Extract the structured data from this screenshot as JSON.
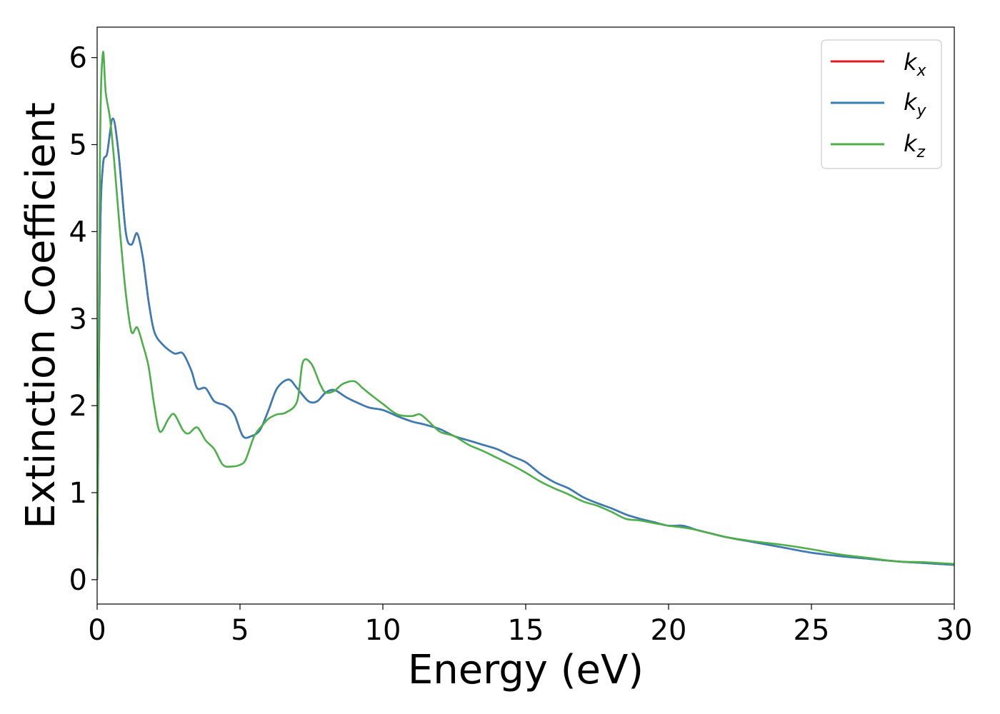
{
  "chart_data": {
    "type": "line",
    "title": "",
    "xlabel": "Energy (eV)",
    "ylabel": "Extinction Coefficient",
    "xlim": [
      0,
      30
    ],
    "ylim": [
      -0.28,
      6.35
    ],
    "xticks": [
      0,
      5,
      10,
      15,
      20,
      25,
      30
    ],
    "yticks": [
      0,
      1,
      2,
      3,
      4,
      5,
      6
    ],
    "grid": false,
    "legend_position": "top-right",
    "series": [
      {
        "name": "k_x",
        "label_main": "k",
        "label_sub": "x",
        "color": "#e41a1c",
        "x": [
          0,
          0.1,
          0.2,
          0.35,
          0.55,
          0.75,
          1.0,
          1.2,
          1.4,
          1.6,
          1.8,
          2.0,
          2.3,
          2.7,
          3.0,
          3.3,
          3.5,
          3.8,
          4.1,
          4.5,
          4.8,
          5.1,
          5.4,
          5.7,
          6.0,
          6.3,
          6.7,
          7.0,
          7.4,
          7.7,
          8.0,
          8.3,
          8.7,
          9.0,
          9.5,
          10.0,
          10.5,
          11.0,
          11.5,
          12.0,
          12.5,
          13.0,
          13.5,
          14.0,
          14.5,
          15.0,
          15.5,
          16.0,
          16.5,
          17.0,
          17.5,
          18.0,
          18.5,
          19.0,
          19.5,
          20.0,
          20.5,
          21.0,
          21.5,
          22.0,
          23.0,
          24.0,
          25.0,
          26.0,
          27.0,
          28.0,
          29.0,
          30.0
        ],
        "y": [
          0.0,
          3.8,
          4.75,
          4.9,
          5.3,
          4.9,
          4.0,
          3.85,
          3.98,
          3.7,
          3.2,
          2.85,
          2.7,
          2.6,
          2.6,
          2.4,
          2.2,
          2.2,
          2.05,
          2.0,
          1.9,
          1.65,
          1.65,
          1.72,
          1.95,
          2.2,
          2.3,
          2.2,
          2.05,
          2.05,
          2.15,
          2.18,
          2.1,
          2.05,
          1.98,
          1.95,
          1.88,
          1.82,
          1.78,
          1.73,
          1.65,
          1.6,
          1.55,
          1.5,
          1.42,
          1.35,
          1.22,
          1.12,
          1.05,
          0.95,
          0.88,
          0.82,
          0.75,
          0.7,
          0.66,
          0.62,
          0.62,
          0.57,
          0.53,
          0.49,
          0.43,
          0.37,
          0.31,
          0.27,
          0.24,
          0.21,
          0.19,
          0.17
        ]
      },
      {
        "name": "k_y",
        "label_main": "k",
        "label_sub": "y",
        "color": "#377eb8",
        "x": [
          0,
          0.1,
          0.2,
          0.35,
          0.55,
          0.75,
          1.0,
          1.2,
          1.4,
          1.6,
          1.8,
          2.0,
          2.3,
          2.7,
          3.0,
          3.3,
          3.5,
          3.8,
          4.1,
          4.5,
          4.8,
          5.1,
          5.4,
          5.7,
          6.0,
          6.3,
          6.7,
          7.0,
          7.4,
          7.7,
          8.0,
          8.3,
          8.7,
          9.0,
          9.5,
          10.0,
          10.5,
          11.0,
          11.5,
          12.0,
          12.5,
          13.0,
          13.5,
          14.0,
          14.5,
          15.0,
          15.5,
          16.0,
          16.5,
          17.0,
          17.5,
          18.0,
          18.5,
          19.0,
          19.5,
          20.0,
          20.5,
          21.0,
          21.5,
          22.0,
          23.0,
          24.0,
          25.0,
          26.0,
          27.0,
          28.0,
          29.0,
          30.0
        ],
        "y": [
          0.0,
          3.8,
          4.75,
          4.9,
          5.3,
          4.9,
          4.0,
          3.85,
          3.98,
          3.7,
          3.2,
          2.85,
          2.7,
          2.6,
          2.6,
          2.4,
          2.2,
          2.2,
          2.05,
          2.0,
          1.9,
          1.65,
          1.65,
          1.72,
          1.95,
          2.2,
          2.3,
          2.2,
          2.05,
          2.05,
          2.15,
          2.18,
          2.1,
          2.05,
          1.98,
          1.95,
          1.88,
          1.82,
          1.78,
          1.73,
          1.65,
          1.6,
          1.55,
          1.5,
          1.42,
          1.35,
          1.22,
          1.12,
          1.05,
          0.95,
          0.88,
          0.82,
          0.75,
          0.7,
          0.66,
          0.62,
          0.62,
          0.57,
          0.53,
          0.49,
          0.43,
          0.37,
          0.31,
          0.27,
          0.24,
          0.21,
          0.19,
          0.17
        ]
      },
      {
        "name": "k_z",
        "label_main": "k",
        "label_sub": "z",
        "color": "#4daf4a",
        "x": [
          0,
          0.1,
          0.2,
          0.3,
          0.45,
          0.6,
          0.8,
          1.0,
          1.2,
          1.4,
          1.6,
          1.8,
          2.0,
          2.2,
          2.5,
          2.7,
          3.0,
          3.2,
          3.5,
          3.8,
          4.1,
          4.4,
          4.7,
          5.0,
          5.2,
          5.5,
          5.8,
          6.0,
          6.3,
          6.6,
          7.0,
          7.2,
          7.5,
          7.8,
          8.0,
          8.3,
          8.6,
          9.0,
          9.3,
          9.6,
          10.0,
          10.5,
          11.0,
          11.3,
          11.6,
          12.0,
          12.5,
          13.0,
          13.5,
          14.0,
          14.5,
          15.0,
          15.5,
          16.0,
          16.5,
          17.0,
          17.5,
          18.0,
          18.5,
          19.0,
          19.5,
          20.0,
          20.5,
          21.0,
          22.0,
          23.0,
          24.0,
          25.0,
          26.0,
          27.0,
          28.0,
          29.0,
          30.0
        ],
        "y": [
          0.0,
          4.9,
          6.05,
          5.6,
          5.3,
          4.8,
          4.0,
          3.3,
          2.85,
          2.9,
          2.7,
          2.45,
          2.0,
          1.7,
          1.85,
          1.9,
          1.72,
          1.68,
          1.75,
          1.6,
          1.5,
          1.32,
          1.3,
          1.32,
          1.38,
          1.65,
          1.78,
          1.85,
          1.9,
          1.92,
          2.05,
          2.5,
          2.48,
          2.25,
          2.15,
          2.17,
          2.25,
          2.28,
          2.2,
          2.12,
          2.02,
          1.9,
          1.88,
          1.9,
          1.82,
          1.7,
          1.65,
          1.55,
          1.48,
          1.4,
          1.32,
          1.23,
          1.13,
          1.05,
          0.98,
          0.9,
          0.85,
          0.78,
          0.7,
          0.68,
          0.65,
          0.62,
          0.6,
          0.57,
          0.49,
          0.44,
          0.4,
          0.35,
          0.29,
          0.25,
          0.21,
          0.2,
          0.18
        ]
      }
    ]
  }
}
